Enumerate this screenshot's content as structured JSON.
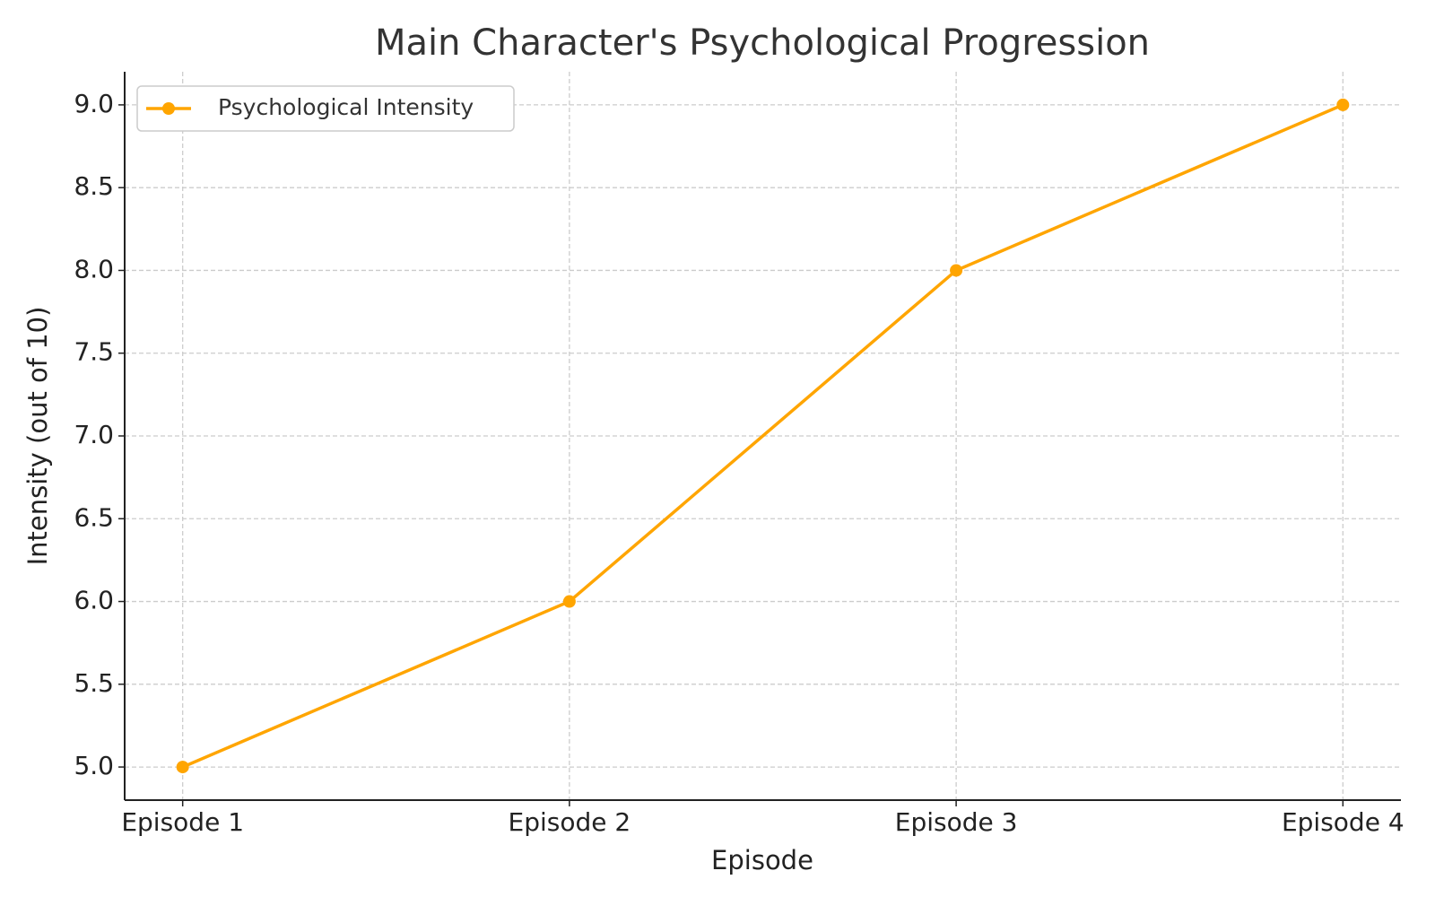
{
  "chart_data": {
    "type": "line",
    "title": "Main Character's Psychological Progression",
    "x_label": "Episode",
    "y_label": "Intensity (out of 10)",
    "categories": [
      "Episode 1",
      "Episode 2",
      "Episode 3",
      "Episode 4"
    ],
    "series": [
      {
        "name": "Psychological Intensity",
        "color": "#ffa500",
        "values": [
          5,
          6,
          8,
          9
        ]
      }
    ],
    "ylim": [
      4.8,
      9.2
    ],
    "yticks": [
      {
        "value": 5,
        "label": "5.0"
      },
      5.5,
      {
        "value": 6,
        "label": "6.0"
      },
      6.5,
      {
        "value": 7,
        "label": "7.0"
      },
      7.5,
      {
        "value": 8,
        "label": "8.0"
      },
      8.5,
      {
        "value": 9,
        "label": "9.0"
      }
    ],
    "grid": true,
    "legend": "upper left",
    "markers": true
  }
}
